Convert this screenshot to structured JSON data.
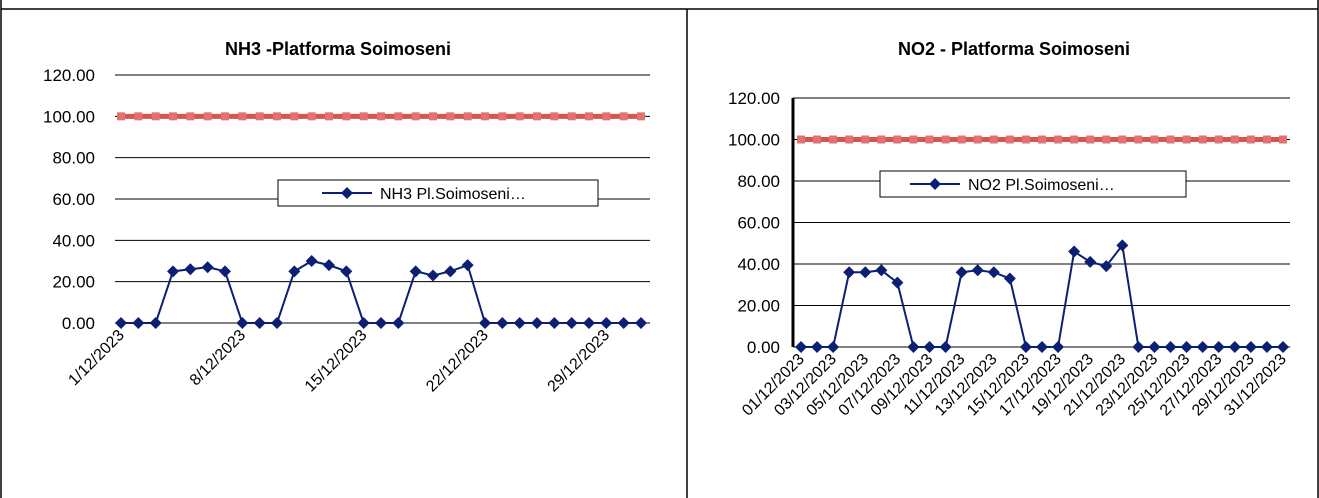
{
  "colors": {
    "limit": "#d9534f",
    "limit_marker": "#e0736f",
    "series": "#0d1f73",
    "grid": "#000000"
  },
  "chart_data": [
    {
      "type": "line",
      "title": "NH3 -Platforma Soimoseni",
      "ylim": [
        0,
        120
      ],
      "yticks": [
        "0.00",
        "20.00",
        "40.00",
        "60.00",
        "80.00",
        "100.00",
        "120.00"
      ],
      "xtick_labels": [
        "1/12/2023",
        "8/12/2023",
        "15/12/2023",
        "22/12/2023",
        "29/12/2023"
      ],
      "xtick_indices": [
        0,
        7,
        14,
        21,
        28
      ],
      "x": [
        "1/12/2023",
        "2/12/2023",
        "3/12/2023",
        "4/12/2023",
        "5/12/2023",
        "6/12/2023",
        "7/12/2023",
        "8/12/2023",
        "9/12/2023",
        "10/12/2023",
        "11/12/2023",
        "12/12/2023",
        "13/12/2023",
        "14/12/2023",
        "15/12/2023",
        "16/12/2023",
        "17/12/2023",
        "18/12/2023",
        "19/12/2023",
        "20/12/2023",
        "21/12/2023",
        "22/12/2023",
        "23/12/2023",
        "24/12/2023",
        "25/12/2023",
        "26/12/2023",
        "27/12/2023",
        "28/12/2023",
        "29/12/2023",
        "30/12/2023",
        "31/12/2023"
      ],
      "legend": "NH3 Pl.Soimoseni…",
      "series": [
        {
          "values": [
            0,
            0,
            0,
            25,
            26,
            27,
            25,
            0,
            0,
            0,
            25,
            30,
            28,
            25,
            0,
            0,
            0,
            25,
            23,
            25,
            28,
            0,
            0,
            0,
            0,
            0,
            0,
            0,
            0,
            0,
            0
          ]
        },
        {
          "values": [
            100,
            100,
            100,
            100,
            100,
            100,
            100,
            100,
            100,
            100,
            100,
            100,
            100,
            100,
            100,
            100,
            100,
            100,
            100,
            100,
            100,
            100,
            100,
            100,
            100,
            100,
            100,
            100,
            100,
            100,
            100
          ]
        }
      ]
    },
    {
      "type": "line",
      "title": "NO2 - Platforma Soimoseni",
      "ylim": [
        0,
        120
      ],
      "yticks": [
        "0.00",
        "20.00",
        "40.00",
        "60.00",
        "80.00",
        "100.00",
        "120.00"
      ],
      "xtick_labels": [
        "01/12/2023",
        "03/12/2023",
        "05/12/2023",
        "07/12/2023",
        "09/12/2023",
        "11/12/2023",
        "13/12/2023",
        "15/12/2023",
        "17/12/2023",
        "19/12/2023",
        "21/12/2023",
        "23/12/2023",
        "25/12/2023",
        "27/12/2023",
        "29/12/2023",
        "31/12/2023"
      ],
      "xtick_indices": [
        0,
        2,
        4,
        6,
        8,
        10,
        12,
        14,
        16,
        18,
        20,
        22,
        24,
        26,
        28,
        30
      ],
      "x": [
        "01/12/2023",
        "02/12/2023",
        "03/12/2023",
        "04/12/2023",
        "05/12/2023",
        "06/12/2023",
        "07/12/2023",
        "08/12/2023",
        "09/12/2023",
        "10/12/2023",
        "11/12/2023",
        "12/12/2023",
        "13/12/2023",
        "14/12/2023",
        "15/12/2023",
        "16/12/2023",
        "17/12/2023",
        "18/12/2023",
        "19/12/2023",
        "20/12/2023",
        "21/12/2023",
        "22/12/2023",
        "23/12/2023",
        "24/12/2023",
        "25/12/2023",
        "26/12/2023",
        "27/12/2023",
        "28/12/2023",
        "29/12/2023",
        "30/12/2023",
        "31/12/2023"
      ],
      "legend": "NO2 Pl.Soimoseni…",
      "series": [
        {
          "values": [
            0,
            0,
            0,
            36,
            36,
            37,
            31,
            0,
            0,
            0,
            36,
            37,
            36,
            33,
            0,
            0,
            0,
            46,
            41,
            39,
            49,
            0,
            0,
            0,
            0,
            0,
            0,
            0,
            0,
            0,
            0
          ]
        },
        {
          "values": [
            100,
            100,
            100,
            100,
            100,
            100,
            100,
            100,
            100,
            100,
            100,
            100,
            100,
            100,
            100,
            100,
            100,
            100,
            100,
            100,
            100,
            100,
            100,
            100,
            100,
            100,
            100,
            100,
            100,
            100,
            100
          ]
        }
      ]
    }
  ]
}
